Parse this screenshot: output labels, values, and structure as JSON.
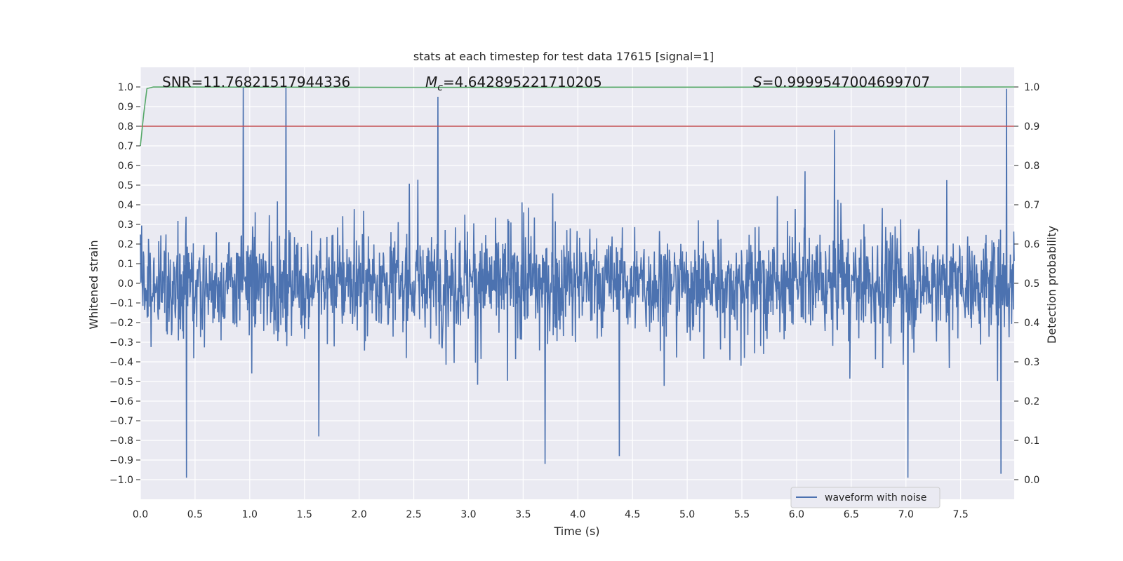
{
  "chart_data": {
    "type": "line",
    "title": "stats at each timestep for test data 17615 [signal=1]",
    "xlabel": "Time (s)",
    "ylabel": "Whitened strain",
    "ylabel_right": "Detection probability",
    "xlim": [
      0.0,
      7.99
    ],
    "ylim": [
      -1.1,
      1.1
    ],
    "ylim_right": [
      -0.05,
      1.05
    ],
    "x_ticks": [
      "0.0",
      "0.5",
      "1.0",
      "1.5",
      "2.0",
      "2.5",
      "3.0",
      "3.5",
      "4.0",
      "4.5",
      "5.0",
      "5.5",
      "6.0",
      "6.5",
      "7.0",
      "7.5"
    ],
    "x_tick_values": [
      0.0,
      0.5,
      1.0,
      1.5,
      2.0,
      2.5,
      3.0,
      3.5,
      4.0,
      4.5,
      5.0,
      5.5,
      6.0,
      6.5,
      7.0,
      7.5
    ],
    "y_ticks": [
      "1.0",
      "0.9",
      "0.8",
      "0.7",
      "0.6",
      "0.5",
      "0.4",
      "0.3",
      "0.2",
      "0.1",
      "0.0",
      "−0.1",
      "−0.2",
      "−0.3",
      "−0.4",
      "−0.5",
      "−0.6",
      "−0.7",
      "−0.8",
      "−0.9",
      "−1.0"
    ],
    "y_tick_values": [
      1.0,
      0.9,
      0.8,
      0.7,
      0.6,
      0.5,
      0.4,
      0.3,
      0.2,
      0.1,
      0.0,
      -0.1,
      -0.2,
      -0.3,
      -0.4,
      -0.5,
      -0.6,
      -0.7,
      -0.8,
      -0.9,
      -1.0
    ],
    "y_ticks_right": [
      "1.0",
      "0.9",
      "0.8",
      "0.7",
      "0.6",
      "0.5",
      "0.4",
      "0.3",
      "0.2",
      "0.1",
      "0.0"
    ],
    "y_tick_values_right": [
      1.0,
      0.9,
      0.8,
      0.7,
      0.6,
      0.5,
      0.4,
      0.3,
      0.2,
      0.1,
      0.0
    ],
    "grid": true,
    "legend": {
      "position": "lower-right",
      "entries": [
        "waveform with noise"
      ]
    },
    "annotations": {
      "snr": "SNR=11.76821517944336",
      "mc_symbol": "M",
      "mc_sub": "c",
      "mc_value": "=4.642895221710205",
      "s_symbol": "S",
      "s_value": "=0.9999547004699707"
    },
    "series": [
      {
        "name": "waveform with noise",
        "axis": "left",
        "color": "#4c72b0",
        "style": "dense noise, approx ±0.35 core with peaks to ±1.0",
        "samples": 2048,
        "peaks": [
          {
            "x": 0.42,
            "y": -0.99
          },
          {
            "x": 0.94,
            "y": 1.0
          },
          {
            "x": 1.33,
            "y": 1.0
          },
          {
            "x": 1.63,
            "y": -0.78
          },
          {
            "x": 2.72,
            "y": 0.95
          },
          {
            "x": 3.7,
            "y": -0.92
          },
          {
            "x": 4.38,
            "y": -0.88
          },
          {
            "x": 7.02,
            "y": -0.99
          },
          {
            "x": 7.87,
            "y": -0.97
          },
          {
            "x": 7.92,
            "y": 0.99
          }
        ]
      },
      {
        "name": "detection probability",
        "axis": "right",
        "color": "#55a868",
        "x": [
          0.0,
          0.03,
          0.06,
          0.12,
          2.4,
          7.99
        ],
        "y": [
          0.85,
          0.93,
          0.996,
          1.0,
          0.999,
          1.0
        ]
      },
      {
        "name": "threshold",
        "axis": "right",
        "color": "#c44e52",
        "x": [
          0.0,
          7.99
        ],
        "y": [
          0.9,
          0.9
        ]
      }
    ]
  }
}
